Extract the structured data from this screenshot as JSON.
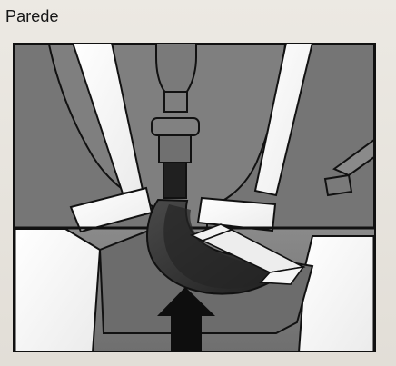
{
  "figure": {
    "title": "Parede"
  },
  "colors": {
    "background": "#e6e2db",
    "frame": "#111111",
    "gray_fill": "#7a7a7a",
    "light_fill": "#f8f8f8",
    "dark_fill": "#1f1f1f",
    "accent_arrow": "#0e0e0e"
  }
}
